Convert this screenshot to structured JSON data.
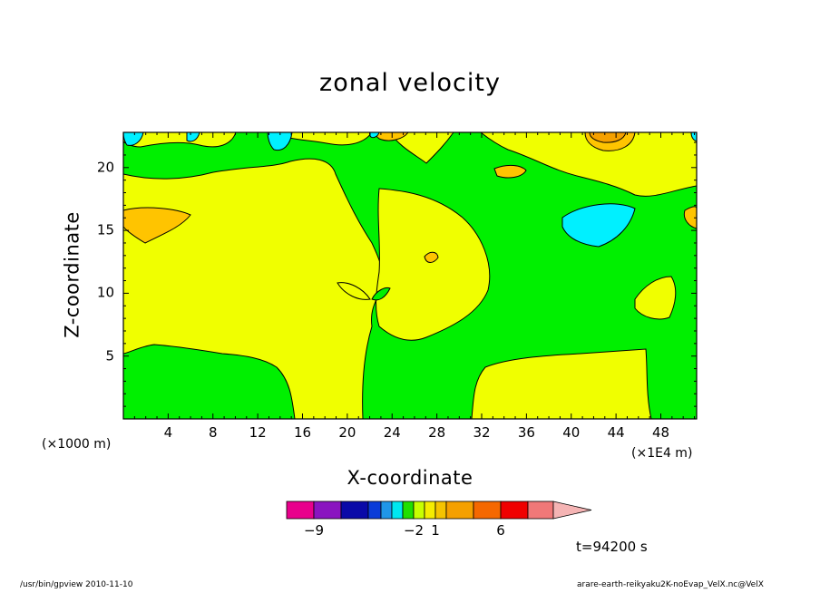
{
  "chart_data": {
    "type": "heatmap",
    "title": "zonal velocity",
    "xlabel": "X-coordinate",
    "ylabel": "Z-coordinate",
    "x_unit_label": "(×1000 m)",
    "x_unit_label2": "(×1E4 m)",
    "xlim": [
      0,
      51.2
    ],
    "ylim": [
      0,
      22.8
    ],
    "x_ticks": [
      4,
      8,
      12,
      16,
      20,
      24,
      28,
      32,
      36,
      40,
      44,
      48
    ],
    "y_ticks": [
      5,
      10,
      15,
      20
    ],
    "colorbar": {
      "tick_labels": [
        {
          "label": "−9",
          "index": 1
        },
        {
          "label": "−2",
          "index": 7
        },
        {
          "label": "1",
          "index": 9
        },
        {
          "label": "6",
          "index": 12
        }
      ],
      "colors": [
        "#e8008c",
        "#8a14c0",
        "#0a0aa8",
        "#0a3cd8",
        "#1f96e8",
        "#00e8f0",
        "#20e000",
        "#c8ff00",
        "#f5ec00",
        "#f5c400",
        "#f5a000",
        "#f56800",
        "#f00000",
        "#f07878",
        "#f5b4b4"
      ]
    },
    "annotation": "t=94200 s"
  },
  "footer": {
    "left": "/usr/bin/gpview   2010-11-10",
    "right": "arare-earth-reikyaku2K-noEvap_VelX.nc@VelX"
  }
}
